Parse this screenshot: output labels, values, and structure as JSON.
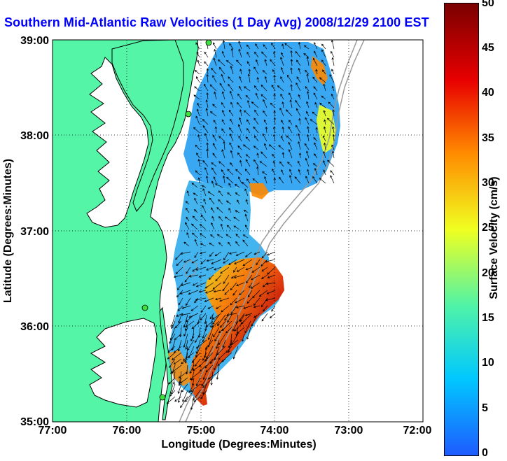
{
  "title": "Southern Mid-Atlantic Raw Velocities (1 Day Avg) 2008/12/29 2100 EST",
  "xlabel": "Longitude (Degrees:Minutes)",
  "ylabel": "Latitude (Degrees:Minutes)",
  "x_ticks": [
    "77:00",
    "76:00",
    "75:00",
    "74:00",
    "73:00",
    "72:00"
  ],
  "y_ticks": [
    "39:00",
    "38:00",
    "37:00",
    "36:00",
    "35:00"
  ],
  "colorbar": {
    "label": "Surface Velocity (cm/s)",
    "ticks": [
      "50",
      "45",
      "40",
      "35",
      "30",
      "25",
      "20",
      "15",
      "10",
      "5",
      "0"
    ],
    "min": 0,
    "max": 50,
    "colors": [
      "#1f5bff",
      "#00c8ff",
      "#4ff3a8",
      "#f0ff20",
      "#ff8a00",
      "#e80000",
      "#7a0000"
    ]
  },
  "colors": {
    "land": "#55f5a8",
    "water": "#ffffff",
    "coastline": "#000000",
    "bathymetry": "#9a9a9a",
    "arrows": "#000000",
    "station": "#40e040"
  },
  "chart_data": {
    "type": "heatmap",
    "xlim": [
      -77,
      -72
    ],
    "ylim": [
      35,
      39
    ],
    "value_range_cm_s": [
      0,
      50
    ]
  }
}
